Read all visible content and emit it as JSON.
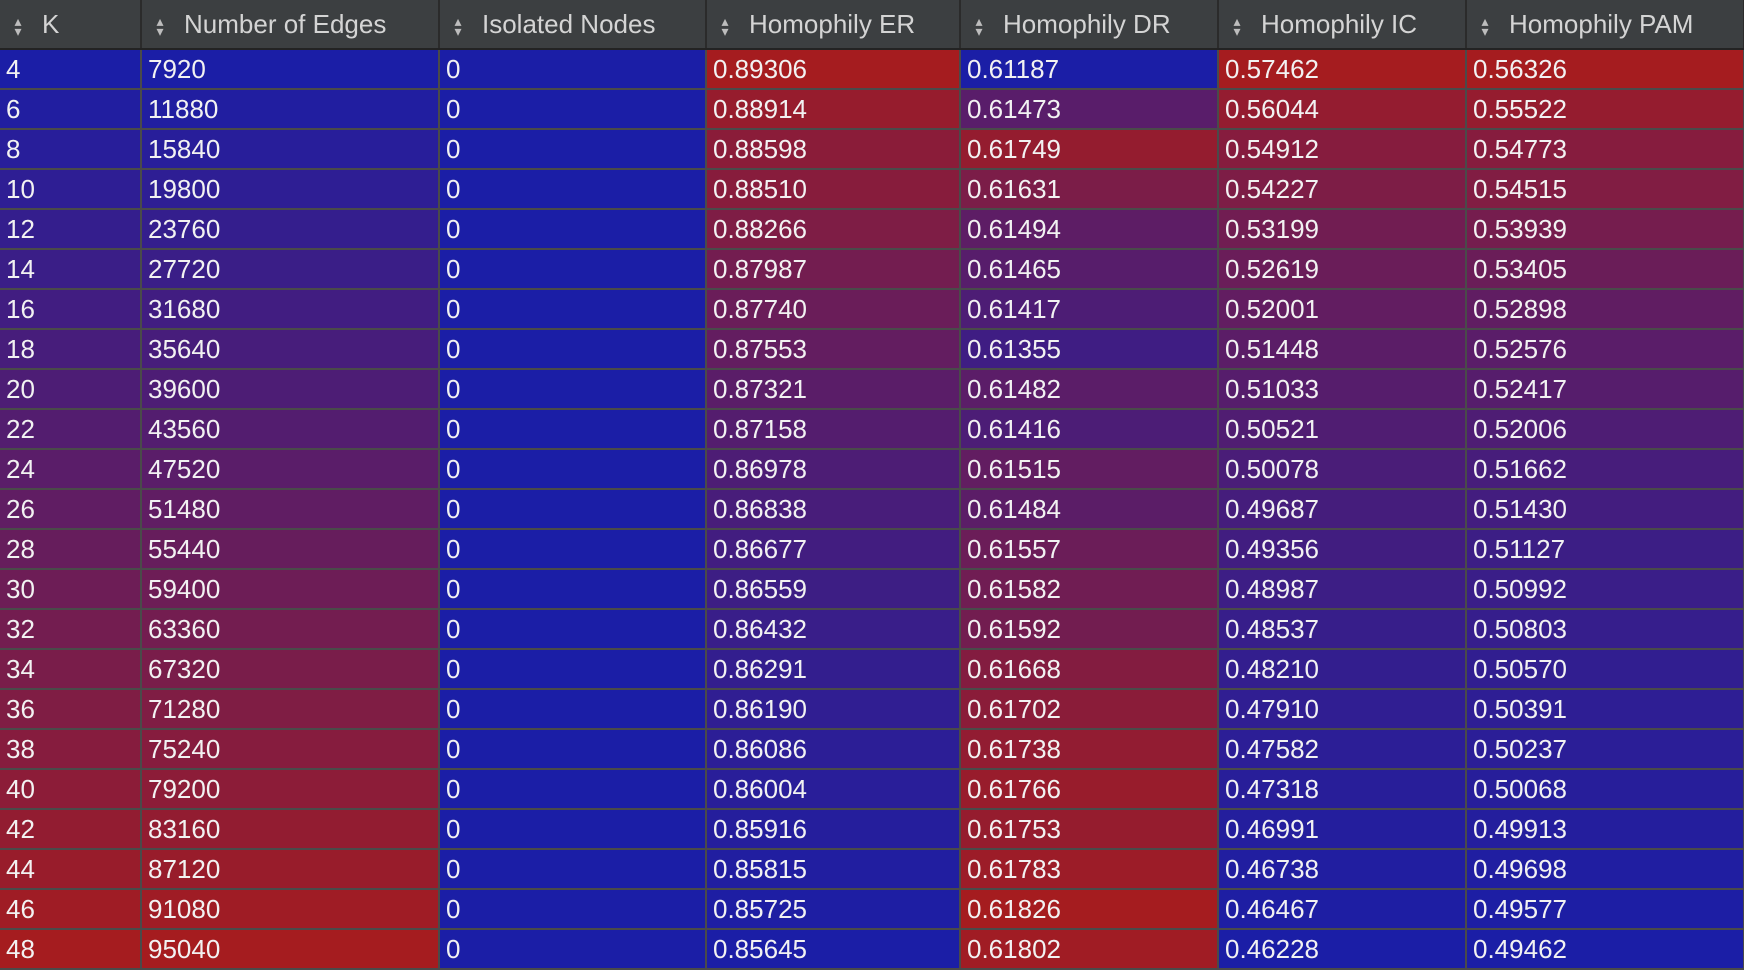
{
  "table": {
    "columns": [
      {
        "label": "K"
      },
      {
        "label": "Number of Edges"
      },
      {
        "label": "Isolated Nodes"
      },
      {
        "label": "Homophily ER"
      },
      {
        "label": "Homophily DR"
      },
      {
        "label": "Homophily IC"
      },
      {
        "label": "Homophily PAM"
      }
    ],
    "rows": [
      [
        "4",
        "7920",
        "0",
        "0.89306",
        "0.61187",
        "0.57462",
        "0.56326"
      ],
      [
        "6",
        "11880",
        "0",
        "0.88914",
        "0.61473",
        "0.56044",
        "0.55522"
      ],
      [
        "8",
        "15840",
        "0",
        "0.88598",
        "0.61749",
        "0.54912",
        "0.54773"
      ],
      [
        "10",
        "19800",
        "0",
        "0.88510",
        "0.61631",
        "0.54227",
        "0.54515"
      ],
      [
        "12",
        "23760",
        "0",
        "0.88266",
        "0.61494",
        "0.53199",
        "0.53939"
      ],
      [
        "14",
        "27720",
        "0",
        "0.87987",
        "0.61465",
        "0.52619",
        "0.53405"
      ],
      [
        "16",
        "31680",
        "0",
        "0.87740",
        "0.61417",
        "0.52001",
        "0.52898"
      ],
      [
        "18",
        "35640",
        "0",
        "0.87553",
        "0.61355",
        "0.51448",
        "0.52576"
      ],
      [
        "20",
        "39600",
        "0",
        "0.87321",
        "0.61482",
        "0.51033",
        "0.52417"
      ],
      [
        "22",
        "43560",
        "0",
        "0.87158",
        "0.61416",
        "0.50521",
        "0.52006"
      ],
      [
        "24",
        "47520",
        "0",
        "0.86978",
        "0.61515",
        "0.50078",
        "0.51662"
      ],
      [
        "26",
        "51480",
        "0",
        "0.86838",
        "0.61484",
        "0.49687",
        "0.51430"
      ],
      [
        "28",
        "55440",
        "0",
        "0.86677",
        "0.61557",
        "0.49356",
        "0.51127"
      ],
      [
        "30",
        "59400",
        "0",
        "0.86559",
        "0.61582",
        "0.48987",
        "0.50992"
      ],
      [
        "32",
        "63360",
        "0",
        "0.86432",
        "0.61592",
        "0.48537",
        "0.50803"
      ],
      [
        "34",
        "67320",
        "0",
        "0.86291",
        "0.61668",
        "0.48210",
        "0.50570"
      ],
      [
        "36",
        "71280",
        "0",
        "0.86190",
        "0.61702",
        "0.47910",
        "0.50391"
      ],
      [
        "38",
        "75240",
        "0",
        "0.86086",
        "0.61738",
        "0.47582",
        "0.50237"
      ],
      [
        "40",
        "79200",
        "0",
        "0.86004",
        "0.61766",
        "0.47318",
        "0.50068"
      ],
      [
        "42",
        "83160",
        "0",
        "0.85916",
        "0.61753",
        "0.46991",
        "0.49913"
      ],
      [
        "44",
        "87120",
        "0",
        "0.85815",
        "0.61783",
        "0.46738",
        "0.49698"
      ],
      [
        "46",
        "91080",
        "0",
        "0.85725",
        "0.61826",
        "0.46467",
        "0.49577"
      ],
      [
        "48",
        "95040",
        "0",
        "0.85645",
        "0.61802",
        "0.46228",
        "0.49462"
      ]
    ]
  },
  "colors": {
    "low": "#1b1ea6",
    "high": "#a51c1f",
    "header_bg": "#3c3f41",
    "header_text": "#d4d4d4",
    "cell_text": "#f2f2f2",
    "grid": "#4a4a4a"
  },
  "icons": {
    "sort": "sort-updown-icon"
  }
}
